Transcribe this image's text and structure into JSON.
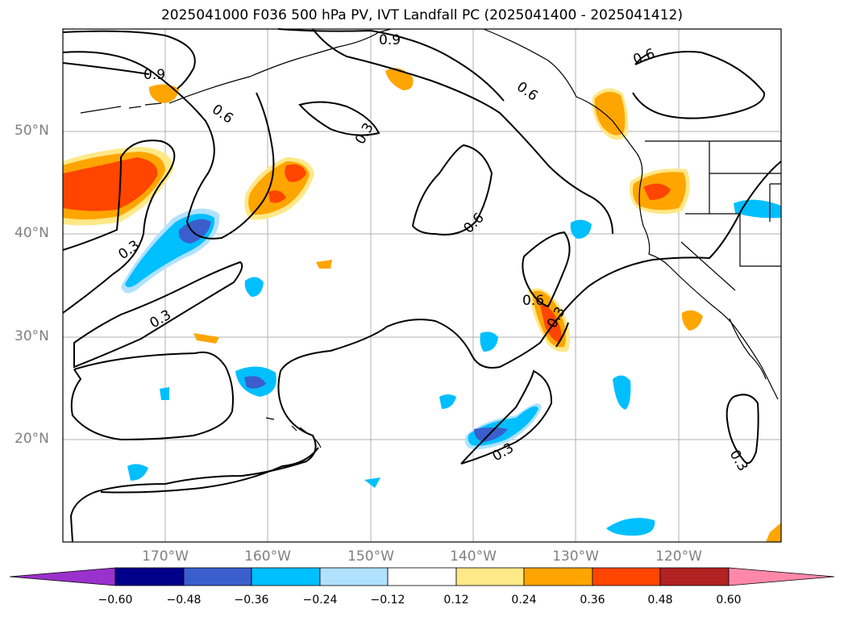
{
  "title": "2025041000 F036 500 hPa PV, IVT Landfall PC (2025041400 - 2025041412)",
  "map": {
    "lat_labels": [
      "50°N",
      "40°N",
      "30°N",
      "20°N"
    ],
    "lon_labels": [
      "170°W",
      "160°W",
      "150°W",
      "140°W",
      "130°W",
      "120°W"
    ],
    "contour_labels": [
      {
        "text": "0.9",
        "id": "nw"
      },
      {
        "text": "0.9",
        "id": "top"
      },
      {
        "text": "0.6",
        "id": "west"
      },
      {
        "text": "0.6",
        "id": "ne"
      },
      {
        "text": "0.6",
        "id": "mid"
      },
      {
        "text": "0.6",
        "id": "coast"
      },
      {
        "text": "0.6",
        "id": "center"
      },
      {
        "text": "0.3",
        "id": "a"
      },
      {
        "text": "0.3",
        "id": "b"
      },
      {
        "text": "0.3",
        "id": "c"
      },
      {
        "text": "0.3",
        "id": "d"
      },
      {
        "text": "0.3",
        "id": "e"
      },
      {
        "text": "0.3",
        "id": "f"
      }
    ]
  },
  "colorbar": {
    "ticks": [
      "−0.60",
      "−0.48",
      "−0.36",
      "−0.24",
      "−0.12",
      "0.12",
      "0.24",
      "0.36",
      "0.48",
      "0.60"
    ],
    "colors": [
      "#9932cc",
      "#00008b",
      "#3a5fcd",
      "#00bfff",
      "#b0e2ff",
      "#ffffff",
      "#ffe888",
      "#ffa500",
      "#ff4500",
      "#b22222",
      "#ff88aa"
    ]
  }
}
